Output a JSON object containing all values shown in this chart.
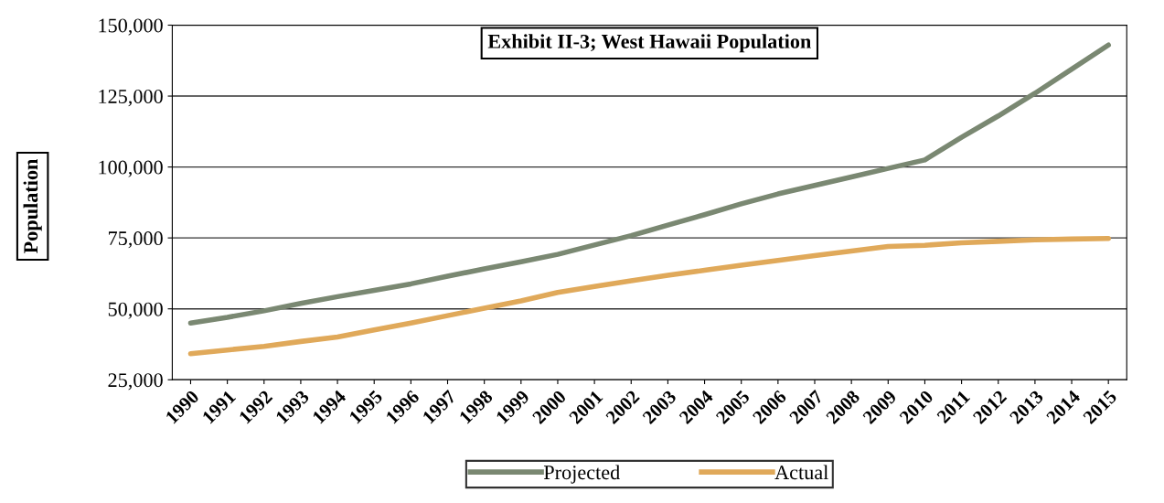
{
  "chart_data": {
    "type": "line",
    "title": "Exhibit II-3; West Hawaii Population",
    "ylabel": "Population",
    "categories": [
      "1990",
      "1991",
      "1992",
      "1993",
      "1994",
      "1995",
      "1996",
      "1997",
      "1998",
      "1999",
      "2000",
      "2001",
      "2002",
      "2003",
      "2004",
      "2005",
      "2006",
      "2007",
      "2008",
      "2009",
      "2010",
      "2011",
      "2012",
      "2013",
      "2014",
      "2015"
    ],
    "series": [
      {
        "name": "Projected",
        "color": "#7a8872",
        "values": [
          45000,
          47000,
          49300,
          51900,
          54300,
          56500,
          58800,
          61500,
          64100,
          66600,
          69200,
          72500,
          75800,
          79500,
          83200,
          87000,
          90500,
          93500,
          96500,
          99500,
          102500,
          110500,
          118000,
          126000,
          134500,
          143000
        ]
      },
      {
        "name": "Actual",
        "color": "#e0a95a",
        "values": [
          34200,
          35500,
          36800,
          38500,
          40100,
          42600,
          45000,
          47600,
          50200,
          52800,
          55800,
          57900,
          59900,
          61800,
          63600,
          65400,
          67100,
          68800,
          70400,
          72000,
          72400,
          73300,
          73800,
          74300,
          74600,
          74800
        ]
      }
    ],
    "ylim": [
      25000,
      150000
    ],
    "yticks": [
      {
        "value": 25000,
        "label": "25,000"
      },
      {
        "value": 50000,
        "label": "50,000"
      },
      {
        "value": 75000,
        "label": "75,000"
      },
      {
        "value": 100000,
        "label": "100,000"
      },
      {
        "value": 125000,
        "label": "125,000"
      },
      {
        "value": 150000,
        "label": "150,000"
      }
    ],
    "grid": "y",
    "legend": "bottom",
    "marker": "none",
    "line_style": "solid"
  }
}
